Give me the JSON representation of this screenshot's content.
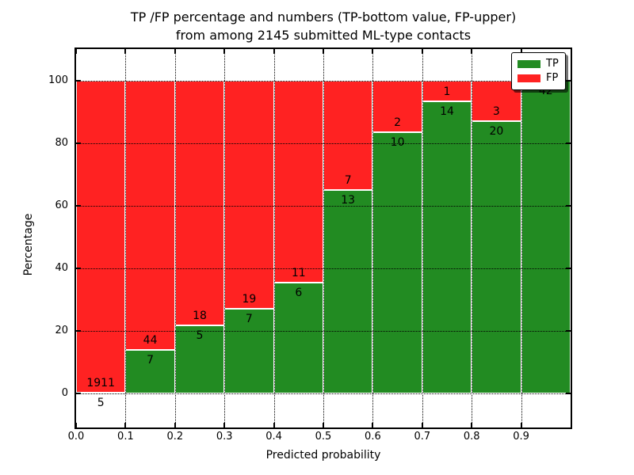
{
  "chart_data": {
    "type": "bar",
    "stacked": true,
    "title_line1": "TP /FP percentage and numbers (TP-bottom value, FP-upper)",
    "title_line2": "from among 2145 submitted ML-type contacts",
    "xlabel": "Predicted probability",
    "ylabel": "Percentage",
    "bins_left_edges": [
      0.0,
      0.1,
      0.2,
      0.3,
      0.4,
      0.5,
      0.6,
      0.7,
      0.8,
      0.9
    ],
    "bin_width": 0.1,
    "series": [
      {
        "name": "TP",
        "color": "#228b22",
        "counts": [
          5,
          7,
          5,
          7,
          6,
          13,
          10,
          14,
          20,
          42
        ]
      },
      {
        "name": "FP",
        "color": "#ff2222",
        "counts": [
          1911,
          44,
          18,
          19,
          11,
          7,
          2,
          1,
          3,
          0
        ]
      }
    ],
    "note": "bars show stacked percentage TP/(TP+FP) bottom (green) and FP/(TP+FP) top (red); annotated numbers are raw counts, FP above the segment boundary and TP below it",
    "xticks": [
      "0.0",
      "0.1",
      "0.2",
      "0.3",
      "0.4",
      "0.5",
      "0.6",
      "0.7",
      "0.8",
      "0.9"
    ],
    "yticks": [
      0,
      20,
      40,
      60,
      80,
      100
    ],
    "xlim": [
      0.0,
      1.0
    ],
    "ylim": [
      -11,
      110
    ],
    "grid": "dotted black, drawn above bars",
    "legend_position": "upper right",
    "bar_edge_color": "#ffffff",
    "background_color": "#ffffff",
    "text_color": "#000000"
  }
}
